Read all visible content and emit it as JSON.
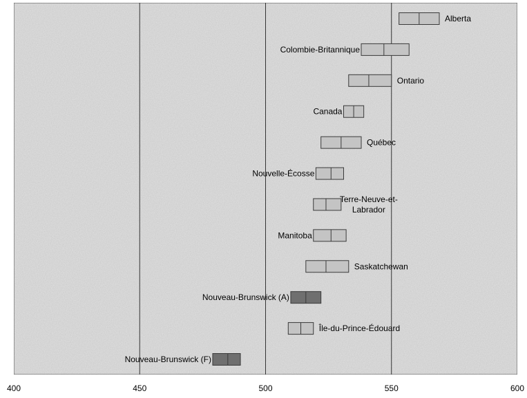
{
  "chart_data": {
    "type": "boxplot",
    "title": "",
    "xlabel": "",
    "ylabel": "",
    "xlim": [
      400,
      600
    ],
    "x_ticks": [
      "400",
      "450",
      "500",
      "550",
      "600"
    ],
    "grid": "vertical",
    "legend": "none",
    "background": "grey-textured",
    "colors": {
      "box_light": "#c4c4c4",
      "box_dark": "#6f6f6f",
      "grid": "#333333"
    },
    "series": [
      {
        "label": "Alberta",
        "low": 553,
        "mid": 561,
        "high": 569,
        "shade": "light",
        "label_side": "right"
      },
      {
        "label": "Colombie-Britannique",
        "low": 538,
        "mid": 547,
        "high": 557,
        "shade": "light",
        "label_side": "left"
      },
      {
        "label": "Ontario",
        "low": 533,
        "mid": 541,
        "high": 550,
        "shade": "light",
        "label_side": "right"
      },
      {
        "label": "Canada",
        "low": 531,
        "mid": 535,
        "high": 539,
        "shade": "light",
        "label_side": "left"
      },
      {
        "label": "Québec",
        "low": 522,
        "mid": 530,
        "high": 538,
        "shade": "light",
        "label_side": "right"
      },
      {
        "label": "Nouvelle-Écosse",
        "low": 520,
        "mid": 526,
        "high": 531,
        "shade": "light",
        "label_side": "left"
      },
      {
        "label": "Terre-Neuve-et-Labrador",
        "low": 519,
        "mid": 524,
        "high": 530,
        "shade": "light",
        "label_side": "right",
        "label_lines": [
          "Terre-Neuve-et-",
          "Labrador"
        ]
      },
      {
        "label": "Manitoba",
        "low": 519,
        "mid": 526,
        "high": 532,
        "shade": "light",
        "label_side": "left"
      },
      {
        "label": "Saskatchewan",
        "low": 516,
        "mid": 524,
        "high": 533,
        "shade": "light",
        "label_side": "right"
      },
      {
        "label": "Nouveau-Brunswick (A)",
        "low": 510,
        "mid": 516,
        "high": 522,
        "shade": "dark",
        "label_side": "left"
      },
      {
        "label": "Île-du-Prince-Édouard",
        "low": 509,
        "mid": 514,
        "high": 519,
        "shade": "light",
        "label_side": "right"
      },
      {
        "label": "Nouveau-Brunswick (F)",
        "low": 479,
        "mid": 485,
        "high": 490,
        "shade": "dark",
        "label_side": "left"
      }
    ]
  }
}
